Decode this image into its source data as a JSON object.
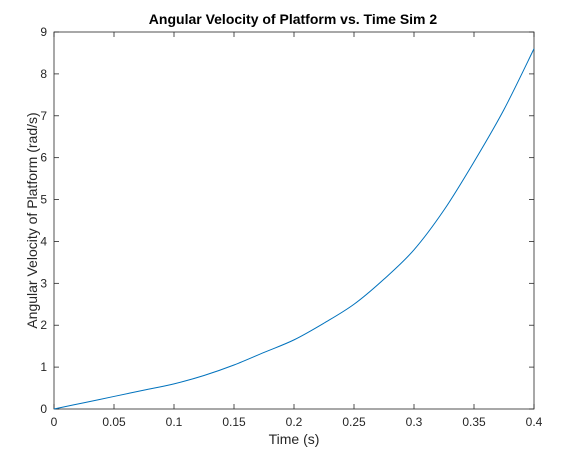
{
  "chart_data": {
    "type": "line",
    "title": "Angular Velocity of Platform vs. Time Sim 2",
    "xlabel": "Time (s)",
    "ylabel": "Angular Velocity of Platform (rad/s)",
    "xlim": [
      0,
      0.4
    ],
    "ylim": [
      0,
      9
    ],
    "x_ticks": [
      "0",
      "0.05",
      "0.1",
      "0.15",
      "0.2",
      "0.25",
      "0.3",
      "0.35",
      "0.4"
    ],
    "y_ticks": [
      "0",
      "1",
      "2",
      "3",
      "4",
      "5",
      "6",
      "7",
      "8",
      "9"
    ],
    "grid": false,
    "series": [
      {
        "color": "#0072BD",
        "x": [
          0,
          0.025,
          0.05,
          0.075,
          0.1,
          0.125,
          0.15,
          0.175,
          0.2,
          0.225,
          0.25,
          0.275,
          0.3,
          0.325,
          0.35,
          0.375,
          0.4
        ],
        "y": [
          0,
          0.15,
          0.3,
          0.45,
          0.6,
          0.8,
          1.05,
          1.35,
          1.65,
          2.05,
          2.5,
          3.1,
          3.8,
          4.75,
          5.9,
          7.15,
          8.6
        ]
      }
    ]
  }
}
